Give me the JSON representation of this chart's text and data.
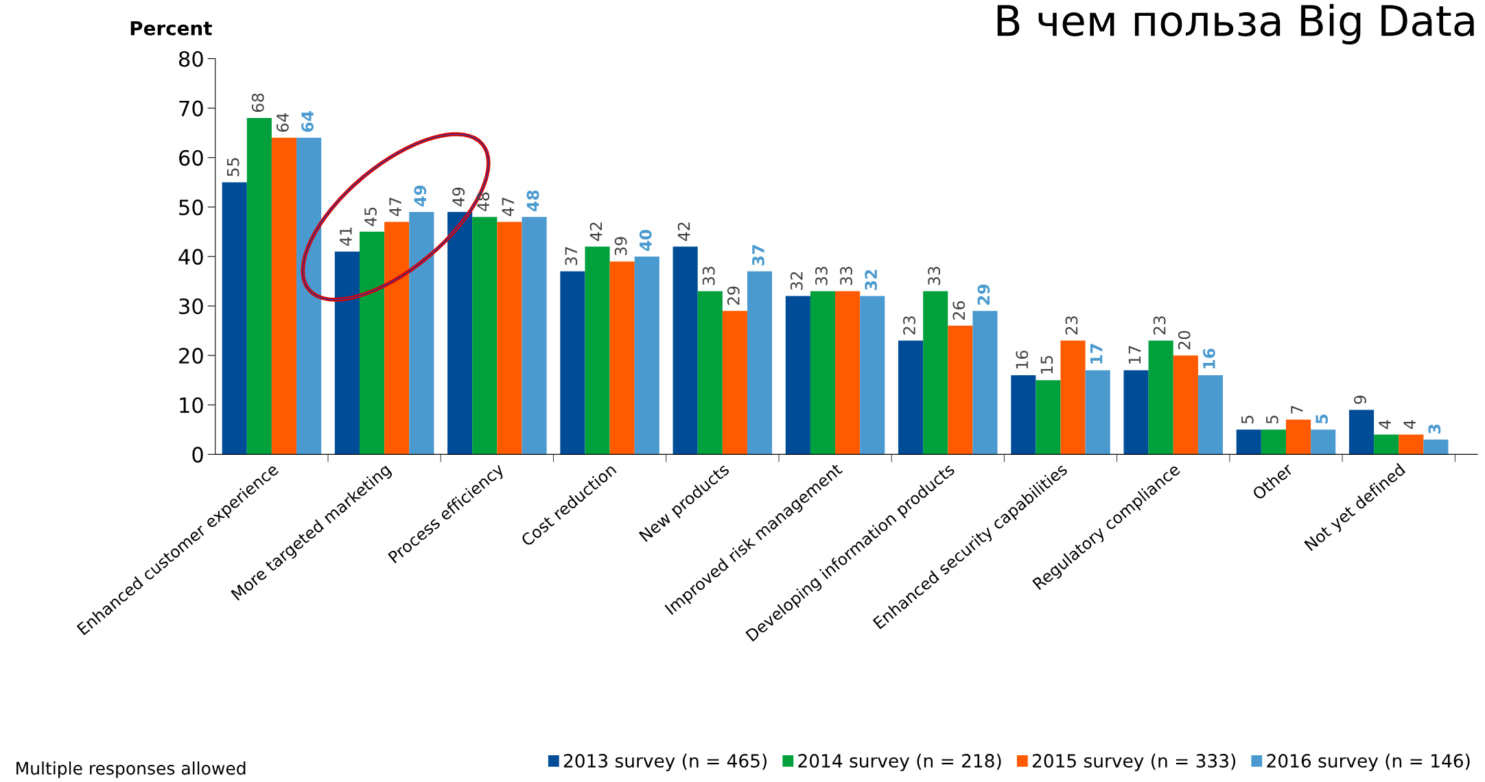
{
  "chart_data": {
    "type": "bar",
    "title": "В чем польза Big Data",
    "ylabel": "Percent",
    "categories": [
      "Enhanced customer experience",
      "More targeted marketing",
      "Process efficiency",
      "Cost reduction",
      "New products",
      "Improved risk management",
      "Developing information products",
      "Enhanced security capabilities",
      "Regulatory compliance",
      "Other",
      "Not yet defined"
    ],
    "series": [
      {
        "name": "2013 survey (n = 465)",
        "color": "#004c97",
        "values": [
          55,
          41,
          49,
          37,
          42,
          32,
          23,
          16,
          17,
          5,
          9
        ]
      },
      {
        "name": "2014 survey (n = 218)",
        "color": "#00a03c",
        "values": [
          68,
          45,
          48,
          42,
          33,
          33,
          33,
          15,
          23,
          5,
          4
        ]
      },
      {
        "name": "2015 survey (n = 333)",
        "color": "#ff5a00",
        "values": [
          64,
          47,
          47,
          39,
          29,
          33,
          26,
          23,
          20,
          7,
          4
        ]
      },
      {
        "name": "2016 survey (n = 146)",
        "color": "#4a9ad0",
        "values": [
          64,
          49,
          48,
          40,
          37,
          32,
          29,
          17,
          16,
          5,
          3
        ]
      }
    ],
    "ylim": [
      0,
      80
    ],
    "yticks": [
      0,
      10,
      20,
      30,
      40,
      50,
      60,
      70,
      80
    ],
    "data_labels": true,
    "grid": false,
    "legend": "bottom",
    "annotations": [
      "Multiple responses allowed"
    ]
  }
}
